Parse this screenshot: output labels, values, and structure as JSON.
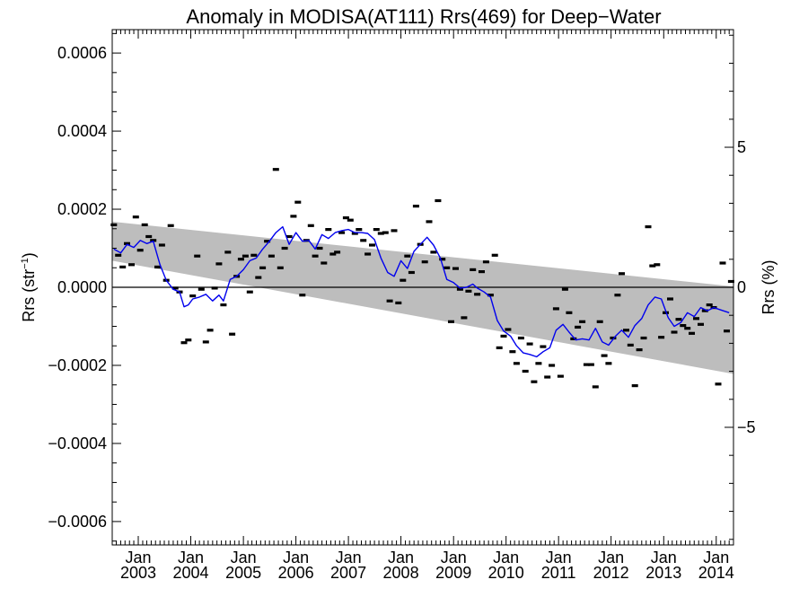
{
  "chart_data": {
    "type": "line",
    "title": "Anomaly in MODISA(AT111) Rrs(469) for Deep−Water",
    "ylabel_left": {
      "base": "Rrs (str",
      "sup": "−1",
      "end": ")"
    },
    "ylabel_right": "Rrs (%)",
    "x_range": [
      "2002-07-04",
      "2014-05-01"
    ],
    "ylim": [
      -0.00066,
      0.00066
    ],
    "ylim_right": [
      -9.2,
      9.2
    ],
    "y_ticks_left": [
      {
        "v": 0.0006,
        "label": "0.0006"
      },
      {
        "v": 0.0004,
        "label": "0.0004"
      },
      {
        "v": 0.0002,
        "label": "0.0002"
      },
      {
        "v": 0.0,
        "label": "0.0000"
      },
      {
        "v": -0.0002,
        "label": "−0.0002"
      },
      {
        "v": -0.0004,
        "label": "−0.0004"
      },
      {
        "v": -0.0006,
        "label": "−0.0006"
      }
    ],
    "y_ticks_right": [
      {
        "v": 5,
        "label": "5"
      },
      {
        "v": 0,
        "label": "0"
      },
      {
        "v": -5,
        "label": "−5"
      }
    ],
    "x_ticks": [
      {
        "date": "2003-01-01",
        "month": "Jan",
        "year": "2003"
      },
      {
        "date": "2004-01-01",
        "month": "Jan",
        "year": "2004"
      },
      {
        "date": "2005-01-01",
        "month": "Jan",
        "year": "2005"
      },
      {
        "date": "2006-01-01",
        "month": "Jan",
        "year": "2006"
      },
      {
        "date": "2007-01-01",
        "month": "Jan",
        "year": "2007"
      },
      {
        "date": "2008-01-01",
        "month": "Jan",
        "year": "2008"
      },
      {
        "date": "2009-01-01",
        "month": "Jan",
        "year": "2009"
      },
      {
        "date": "2010-01-01",
        "month": "Jan",
        "year": "2010"
      },
      {
        "date": "2011-01-01",
        "month": "Jan",
        "year": "2011"
      },
      {
        "date": "2012-01-01",
        "month": "Jan",
        "year": "2012"
      },
      {
        "date": "2013-01-01",
        "month": "Jan",
        "year": "2013"
      },
      {
        "date": "2014-01-01",
        "month": "Jan",
        "year": "2014"
      }
    ],
    "band": {
      "upper": [
        [
          "2002-07-04",
          0.000168
        ],
        [
          "2014-05-01",
          2e-06
        ]
      ],
      "lower": [
        [
          "2002-07-04",
          6.8e-05
        ],
        [
          "2014-05-01",
          -0.000222
        ]
      ]
    },
    "zero_line": 0,
    "colors": {
      "band": "#bdbdbd",
      "line": "#0000ee",
      "points": "#000000",
      "axes": "#000000"
    },
    "series": [
      {
        "kind": "monthly_points",
        "points": [
          [
            "2002-07-15",
            0.00016
          ],
          [
            "2002-08-15",
            8.2e-05
          ],
          [
            "2002-09-15",
            5.2e-05
          ],
          [
            "2002-10-15",
            0.000112
          ],
          [
            "2002-11-15",
            5.8e-05
          ],
          [
            "2002-12-15",
            0.00018
          ],
          [
            "2003-01-15",
            9.5e-05
          ],
          [
            "2003-02-15",
            0.00016
          ],
          [
            "2003-03-15",
            0.00013
          ],
          [
            "2003-04-15",
            0.00012
          ],
          [
            "2003-05-15",
            5.2e-05
          ],
          [
            "2003-06-15",
            0.000108
          ],
          [
            "2003-07-15",
            1.8e-05
          ],
          [
            "2003-08-15",
            0.000158
          ],
          [
            "2003-09-15",
            -2e-06
          ],
          [
            "2003-10-15",
            -1.2e-05
          ],
          [
            "2003-11-15",
            -0.000142
          ],
          [
            "2003-12-15",
            -0.000135
          ],
          [
            "2004-01-15",
            -2.2e-05
          ],
          [
            "2004-02-15",
            8e-05
          ],
          [
            "2004-03-15",
            -5e-06
          ],
          [
            "2004-04-15",
            -0.00014
          ],
          [
            "2004-05-15",
            -0.00011
          ],
          [
            "2004-06-15",
            -2e-06
          ],
          [
            "2004-07-15",
            6e-05
          ],
          [
            "2004-08-15",
            -4.5e-05
          ],
          [
            "2004-09-15",
            9e-05
          ],
          [
            "2004-10-15",
            -0.00012
          ],
          [
            "2004-11-15",
            2.8e-05
          ],
          [
            "2004-12-15",
            7.2e-05
          ],
          [
            "2005-01-15",
            8e-05
          ],
          [
            "2005-02-15",
            -1.2e-05
          ],
          [
            "2005-03-15",
            8.2e-05
          ],
          [
            "2005-04-15",
            2.5e-05
          ],
          [
            "2005-05-15",
            5e-05
          ],
          [
            "2005-06-15",
            0.000118
          ],
          [
            "2005-07-15",
            8e-05
          ],
          [
            "2005-08-15",
            0.000302
          ],
          [
            "2005-09-15",
            5e-05
          ],
          [
            "2005-10-15",
            0.0001
          ],
          [
            "2005-11-15",
            0.00013
          ],
          [
            "2005-12-15",
            0.000182
          ],
          [
            "2006-01-15",
            0.000218
          ],
          [
            "2006-02-15",
            -2e-05
          ],
          [
            "2006-03-15",
            0.00012
          ],
          [
            "2006-04-15",
            0.000158
          ],
          [
            "2006-05-15",
            8e-05
          ],
          [
            "2006-06-15",
            0.0001
          ],
          [
            "2006-07-15",
            6.2e-05
          ],
          [
            "2006-08-15",
            0.000148
          ],
          [
            "2006-09-15",
            8.5e-05
          ],
          [
            "2006-10-15",
            9e-05
          ],
          [
            "2006-11-15",
            0.00014
          ],
          [
            "2006-12-15",
            0.000178
          ],
          [
            "2007-01-15",
            0.000172
          ],
          [
            "2007-02-15",
            0.000138
          ],
          [
            "2007-03-15",
            0.000148
          ],
          [
            "2007-04-15",
            0.00012
          ],
          [
            "2007-05-15",
            8.5e-05
          ],
          [
            "2007-06-15",
            0.000108
          ],
          [
            "2007-07-15",
            0.000148
          ],
          [
            "2007-08-15",
            0.000138
          ],
          [
            "2007-09-15",
            0.00014
          ],
          [
            "2007-10-15",
            -3.5e-05
          ],
          [
            "2007-11-15",
            0.000145
          ],
          [
            "2007-12-15",
            -4e-05
          ],
          [
            "2008-01-15",
            1.8e-05
          ],
          [
            "2008-02-15",
            8e-05
          ],
          [
            "2008-03-15",
            3.8e-05
          ],
          [
            "2008-04-15",
            0.000208
          ],
          [
            "2008-05-15",
            0.00011
          ],
          [
            "2008-06-15",
            6.5e-05
          ],
          [
            "2008-07-15",
            0.000168
          ],
          [
            "2008-08-15",
            9e-05
          ],
          [
            "2008-09-15",
            0.000222
          ],
          [
            "2008-10-15",
            7.2e-05
          ],
          [
            "2008-11-15",
            5e-05
          ],
          [
            "2008-12-15",
            -8.8e-05
          ],
          [
            "2009-01-15",
            4.8e-05
          ],
          [
            "2009-02-15",
            -5e-06
          ],
          [
            "2009-03-15",
            -7.8e-05
          ],
          [
            "2009-04-15",
            -1e-05
          ],
          [
            "2009-05-15",
            4.5e-05
          ],
          [
            "2009-06-15",
            -1.8e-05
          ],
          [
            "2009-07-15",
            4e-05
          ],
          [
            "2009-08-15",
            6.5e-05
          ],
          [
            "2009-09-15",
            -2e-05
          ],
          [
            "2009-10-15",
            8.2e-05
          ],
          [
            "2009-11-15",
            -0.000155
          ],
          [
            "2009-12-15",
            -0.000125
          ],
          [
            "2010-01-15",
            -0.000108
          ],
          [
            "2010-02-15",
            -0.000165
          ],
          [
            "2010-03-15",
            -0.000195
          ],
          [
            "2010-04-15",
            -0.00013
          ],
          [
            "2010-05-15",
            -0.000215
          ],
          [
            "2010-06-15",
            -0.000145
          ],
          [
            "2010-07-15",
            -0.000242
          ],
          [
            "2010-08-15",
            -0.000195
          ],
          [
            "2010-09-15",
            -0.000152
          ],
          [
            "2010-10-15",
            -0.00023
          ],
          [
            "2010-11-15",
            -0.0002
          ],
          [
            "2010-12-15",
            -5.5e-05
          ],
          [
            "2011-01-15",
            -0.000228
          ],
          [
            "2011-02-15",
            -5e-06
          ],
          [
            "2011-03-15",
            -6.5e-05
          ],
          [
            "2011-04-15",
            -0.000132
          ],
          [
            "2011-05-15",
            -0.000102
          ],
          [
            "2011-06-15",
            -8.8e-05
          ],
          [
            "2011-07-15",
            -0.000198
          ],
          [
            "2011-08-15",
            -0.000198
          ],
          [
            "2011-09-15",
            -0.000255
          ],
          [
            "2011-10-15",
            -8.8e-05
          ],
          [
            "2011-11-15",
            -0.000175
          ],
          [
            "2011-12-15",
            -0.000195
          ],
          [
            "2012-01-15",
            -0.00013
          ],
          [
            "2012-02-15",
            -2e-05
          ],
          [
            "2012-03-15",
            3.5e-05
          ],
          [
            "2012-04-15",
            -0.00011
          ],
          [
            "2012-05-15",
            -0.000148
          ],
          [
            "2012-06-15",
            -0.000252
          ],
          [
            "2012-07-15",
            -0.00016
          ],
          [
            "2012-08-15",
            -0.00013
          ],
          [
            "2012-09-15",
            0.000155
          ],
          [
            "2012-10-15",
            5.5e-05
          ],
          [
            "2012-11-15",
            5.8e-05
          ],
          [
            "2012-12-15",
            -0.000128
          ],
          [
            "2013-01-15",
            -6.5e-05
          ],
          [
            "2013-02-15",
            -3e-05
          ],
          [
            "2013-03-15",
            -0.000115
          ],
          [
            "2013-04-15",
            -8.2e-05
          ],
          [
            "2013-05-15",
            -9.8e-05
          ],
          [
            "2013-06-15",
            -0.000105
          ],
          [
            "2013-07-15",
            -0.000118
          ],
          [
            "2013-08-15",
            -8e-05
          ],
          [
            "2013-09-15",
            -9.5e-05
          ],
          [
            "2013-10-15",
            -6e-05
          ],
          [
            "2013-11-15",
            -4.5e-05
          ],
          [
            "2013-12-15",
            -5.2e-05
          ],
          [
            "2014-01-15",
            -0.000248
          ],
          [
            "2014-02-15",
            6.2e-05
          ],
          [
            "2014-03-15",
            -0.000112
          ],
          [
            "2014-04-15",
            1.5e-05
          ]
        ]
      },
      {
        "kind": "smoothed_line",
        "points": [
          [
            "2002-07-15",
            9.8e-05
          ],
          [
            "2002-09-01",
            8.8e-05
          ],
          [
            "2002-10-15",
            0.00011
          ],
          [
            "2002-12-01",
            0.000102
          ],
          [
            "2003-01-15",
            0.00012
          ],
          [
            "2003-03-01",
            0.000112
          ],
          [
            "2003-04-15",
            0.000118
          ],
          [
            "2003-06-01",
            5.8e-05
          ],
          [
            "2003-07-15",
            1.8e-05
          ],
          [
            "2003-09-01",
            -5e-06
          ],
          [
            "2003-10-15",
            -1.2e-05
          ],
          [
            "2003-11-15",
            -5e-05
          ],
          [
            "2003-12-15",
            -4.5e-05
          ],
          [
            "2004-01-15",
            -3e-05
          ],
          [
            "2004-03-01",
            -2.5e-05
          ],
          [
            "2004-04-15",
            -1.8e-05
          ],
          [
            "2004-06-01",
            -3.5e-05
          ],
          [
            "2004-07-15",
            -2e-05
          ],
          [
            "2004-08-15",
            -3.5e-05
          ],
          [
            "2004-10-01",
            2e-05
          ],
          [
            "2004-11-15",
            2.8e-05
          ],
          [
            "2005-01-01",
            4.5e-05
          ],
          [
            "2005-02-15",
            6.8e-05
          ],
          [
            "2005-04-01",
            7.5e-05
          ],
          [
            "2005-05-15",
            9.8e-05
          ],
          [
            "2005-07-01",
            0.000118
          ],
          [
            "2005-08-15",
            0.00014
          ],
          [
            "2005-10-01",
            0.000155
          ],
          [
            "2005-11-15",
            0.00011
          ],
          [
            "2006-01-01",
            0.00014
          ],
          [
            "2006-02-15",
            0.000118
          ],
          [
            "2006-04-01",
            0.00012
          ],
          [
            "2006-05-15",
            9.8e-05
          ],
          [
            "2006-07-01",
            0.000135
          ],
          [
            "2006-08-15",
            0.000125
          ],
          [
            "2006-10-01",
            0.00014
          ],
          [
            "2006-11-15",
            0.000145
          ],
          [
            "2007-01-01",
            0.000148
          ],
          [
            "2007-02-15",
            0.00014
          ],
          [
            "2007-04-01",
            0.00014
          ],
          [
            "2007-05-15",
            0.000138
          ],
          [
            "2007-07-01",
            0.000122
          ],
          [
            "2007-08-15",
            7.5e-05
          ],
          [
            "2007-10-01",
            3.8e-05
          ],
          [
            "2007-11-15",
            2.8e-05
          ],
          [
            "2008-01-01",
            6.8e-05
          ],
          [
            "2008-02-15",
            4.8e-05
          ],
          [
            "2008-04-01",
            9.2e-05
          ],
          [
            "2008-05-15",
            0.00011
          ],
          [
            "2008-07-01",
            0.000128
          ],
          [
            "2008-08-15",
            0.000108
          ],
          [
            "2008-10-01",
            7.5e-05
          ],
          [
            "2008-11-15",
            2e-05
          ],
          [
            "2009-01-01",
            1.2e-05
          ],
          [
            "2009-02-15",
            -2e-06
          ],
          [
            "2009-04-01",
            0.0
          ],
          [
            "2009-05-15",
            8e-06
          ],
          [
            "2009-06-15",
            -2e-06
          ],
          [
            "2009-08-01",
            -1.2e-05
          ],
          [
            "2009-09-15",
            -2.5e-05
          ],
          [
            "2009-11-01",
            -8.5e-05
          ],
          [
            "2009-12-15",
            -0.000112
          ],
          [
            "2010-02-01",
            -0.000125
          ],
          [
            "2010-03-15",
            -0.00015
          ],
          [
            "2010-05-01",
            -0.000168
          ],
          [
            "2010-06-15",
            -0.000172
          ],
          [
            "2010-08-01",
            -0.000178
          ],
          [
            "2010-09-15",
            -0.000165
          ],
          [
            "2010-11-01",
            -0.000155
          ],
          [
            "2010-12-15",
            -0.00011
          ],
          [
            "2011-02-01",
            -9.5e-05
          ],
          [
            "2011-03-15",
            -0.000115
          ],
          [
            "2011-05-01",
            -0.000135
          ],
          [
            "2011-06-15",
            -0.000132
          ],
          [
            "2011-08-01",
            -0.000135
          ],
          [
            "2011-09-15",
            -0.000105
          ],
          [
            "2011-11-01",
            -0.00014
          ],
          [
            "2011-12-15",
            -0.000148
          ],
          [
            "2012-02-01",
            -0.000125
          ],
          [
            "2012-03-15",
            -0.00011
          ],
          [
            "2012-05-01",
            -0.000128
          ],
          [
            "2012-06-15",
            -9.8e-05
          ],
          [
            "2012-08-01",
            -8e-05
          ],
          [
            "2012-09-15",
            -4.5e-05
          ],
          [
            "2012-11-01",
            -2.5e-05
          ],
          [
            "2012-12-15",
            -3e-05
          ],
          [
            "2013-02-01",
            -7.8e-05
          ],
          [
            "2013-03-15",
            -0.0001
          ],
          [
            "2013-05-01",
            -9e-05
          ],
          [
            "2013-06-15",
            -6.5e-05
          ],
          [
            "2013-08-01",
            -7.5e-05
          ],
          [
            "2013-09-15",
            -5.2e-05
          ],
          [
            "2013-11-01",
            -6e-05
          ],
          [
            "2013-12-15",
            -5.2e-05
          ],
          [
            "2014-02-01",
            -5.8e-05
          ],
          [
            "2014-04-01",
            -6.5e-05
          ]
        ]
      }
    ]
  }
}
